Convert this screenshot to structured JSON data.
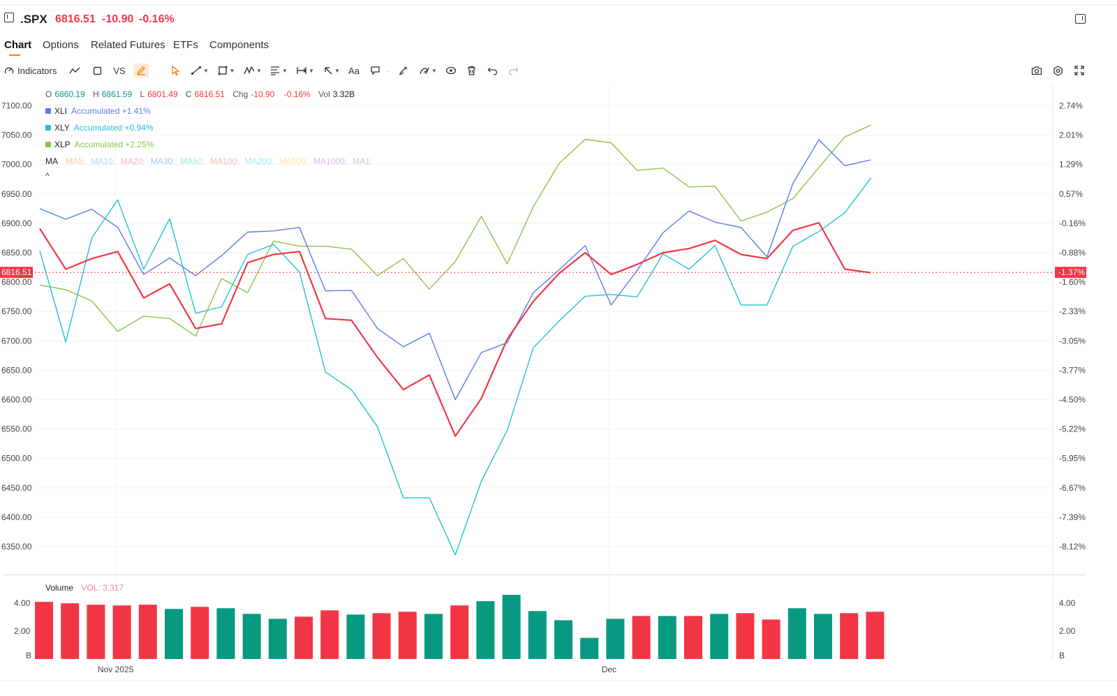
{
  "header": {
    "symbol": ".SPX",
    "price": "6816.51",
    "change": "-10.90",
    "change_pct": "-0.16%"
  },
  "tabs": [
    {
      "label": "Chart",
      "active": true
    },
    {
      "label": "Options"
    },
    {
      "label": "Related Futures"
    },
    {
      "label": "ETFs"
    },
    {
      "label": "Components"
    }
  ],
  "toolbar": {
    "indicators_label": "Indicators",
    "vs_label": "VS",
    "text_label": "Aa",
    "icons": [
      "line-chart-icon",
      "square-icon",
      "draw-icon",
      "cursor-icon",
      "trend-line-icon",
      "shape-icon",
      "pattern-icon",
      "fib-icon",
      "measure-icon",
      "arrow-icon",
      "text-icon",
      "comment-icon",
      "brush-icon",
      "visibility-icon",
      "trash-icon",
      "undo-icon",
      "redo-icon",
      "camera-icon",
      "settings-icon",
      "fullscreen-icon"
    ]
  },
  "ohlc": {
    "o_label": "O",
    "o": "6860.19",
    "h_label": "H",
    "h": "6861.59",
    "l_label": "L",
    "l": "6801.49",
    "c_label": "C",
    "c": "6816.51",
    "chg_label": "Chg",
    "chg": "-10.90",
    "chg_pct": "-0.16%",
    "vol_label": "Vol",
    "vol": "3.32B"
  },
  "legend": [
    {
      "symbol": "XLI",
      "text": "Accumulated +1.41%",
      "color": "#5b7bea"
    },
    {
      "symbol": "XLY",
      "text": "Accumulated +0.94%",
      "color": "#1fc3d1"
    },
    {
      "symbol": "XLP",
      "text": "Accumulated +2.25%",
      "color": "#8bc34a"
    }
  ],
  "ma": {
    "label": "MA",
    "items": [
      {
        "text": "MA5:",
        "color": "#ffc9a3"
      },
      {
        "text": "MA10:",
        "color": "#a8d8f0"
      },
      {
        "text": "MA20:",
        "color": "#f6b3d6"
      },
      {
        "text": "MA30:",
        "color": "#a6c2e8"
      },
      {
        "text": "MA50:",
        "color": "#a8e6dc"
      },
      {
        "text": "MA100:",
        "color": "#f7b9b9"
      },
      {
        "text": "MA200:",
        "color": "#9fe9f5"
      },
      {
        "text": "MA500:",
        "color": "#fde3a6"
      },
      {
        "text": "MA1000:",
        "color": "#d2b8ef"
      },
      {
        "text": "MA1:",
        "color": "#c9c9c9"
      }
    ],
    "collapse": "^"
  },
  "volume_legend": {
    "label": "Volume",
    "value_text": "VOL: 3.317"
  },
  "colors": {
    "up": "#089981",
    "down": "#f23645",
    "spx": "#f23645"
  },
  "chart_data": {
    "type": "line",
    "x_labels": [
      {
        "index": 3,
        "text": "Nov 2025"
      },
      {
        "index": 22,
        "text": "Dec"
      }
    ],
    "y_left": {
      "ticks": [
        "7100.00",
        "7050.00",
        "7000.00",
        "6950.00",
        "6900.00",
        "6850.00",
        "6800.00",
        "6750.00",
        "6700.00",
        "6650.00",
        "6600.00",
        "6550.00",
        "6500.00",
        "6450.00",
        "6400.00",
        "6350.00"
      ],
      "range": [
        6334,
        7120
      ]
    },
    "y_right": {
      "ticks": [
        "2.74%",
        "2.01%",
        "1.29%",
        "0.57%",
        "-0.16%",
        "-0.88%",
        "-1.60%",
        "-2.33%",
        "-3.05%",
        "-3.77%",
        "-4.50%",
        "-5.22%",
        "-5.95%",
        "-6.67%",
        "-7.39%",
        "-8.12%"
      ]
    },
    "last_price_label": "6816.51",
    "last_pct_label": "-1.37%",
    "last_price_value": 6816.51,
    "series": [
      {
        "name": ".SPX",
        "color": "#f23645",
        "width": 2.2,
        "values": [
          6891,
          6822,
          6840,
          6852,
          6773,
          6797,
          6721,
          6729,
          6833,
          6847,
          6852,
          6738,
          6735,
          6672,
          6617,
          6642,
          6538,
          6602,
          6703,
          6767,
          6815,
          6850,
          6813,
          6830,
          6850,
          6857,
          6871,
          6847,
          6840,
          6888,
          6901,
          6822,
          6816
        ]
      },
      {
        "name": "XLI",
        "color": "#5b7bea",
        "width": 1.4,
        "values": [
          6925,
          6907,
          6924,
          6893,
          6813,
          6841,
          6811,
          6845,
          6885,
          6887,
          6893,
          6785,
          6786,
          6721,
          6690,
          6713,
          6600,
          6680,
          6697,
          6782,
          6821,
          6862,
          6761,
          6820,
          6884,
          6921,
          6902,
          6893,
          6843,
          6968,
          7042,
          6998,
          7008
        ]
      },
      {
        "name": "XLY",
        "color": "#1fc3d1",
        "width": 1.4,
        "values": [
          6853,
          6698,
          6875,
          6940,
          6822,
          6908,
          6747,
          6758,
          6847,
          6864,
          6817,
          6647,
          6617,
          6554,
          6433,
          6433,
          6336,
          6461,
          6548,
          6688,
          6734,
          6776,
          6779,
          6775,
          6848,
          6822,
          6862,
          6761,
          6761,
          6861,
          6886,
          6918,
          6977
        ]
      },
      {
        "name": "XLP",
        "color": "#8bc34a",
        "width": 1.4,
        "values": [
          6795,
          6787,
          6768,
          6716,
          6742,
          6738,
          6708,
          6806,
          6782,
          6870,
          6861,
          6861,
          6856,
          6811,
          6840,
          6788,
          6835,
          6912,
          6831,
          6928,
          7002,
          7043,
          7037,
          6990,
          6994,
          6962,
          6963,
          6904,
          6919,
          6942,
          6995,
          7047,
          7067
        ]
      }
    ],
    "volume": {
      "ticks": [
        "4.00",
        "2.00",
        "B"
      ],
      "values": [
        4.05,
        3.95,
        3.85,
        3.8,
        3.85,
        3.55,
        3.7,
        3.6,
        3.2,
        2.85,
        3.0,
        3.45,
        3.15,
        3.25,
        3.35,
        3.2,
        3.8,
        4.1,
        4.55,
        3.4,
        2.75,
        1.5,
        2.85,
        3.05,
        3.05,
        3.05,
        3.2,
        3.25,
        2.8,
        3.6,
        3.2,
        3.25,
        3.35
      ],
      "directions": [
        "down",
        "down",
        "down",
        "down",
        "down",
        "up",
        "down",
        "up",
        "up",
        "up",
        "down",
        "down",
        "up",
        "down",
        "down",
        "up",
        "down",
        "up",
        "up",
        "up",
        "up",
        "up",
        "up",
        "down",
        "up",
        "down",
        "up",
        "down",
        "down",
        "up",
        "up",
        "down",
        "down"
      ]
    }
  }
}
